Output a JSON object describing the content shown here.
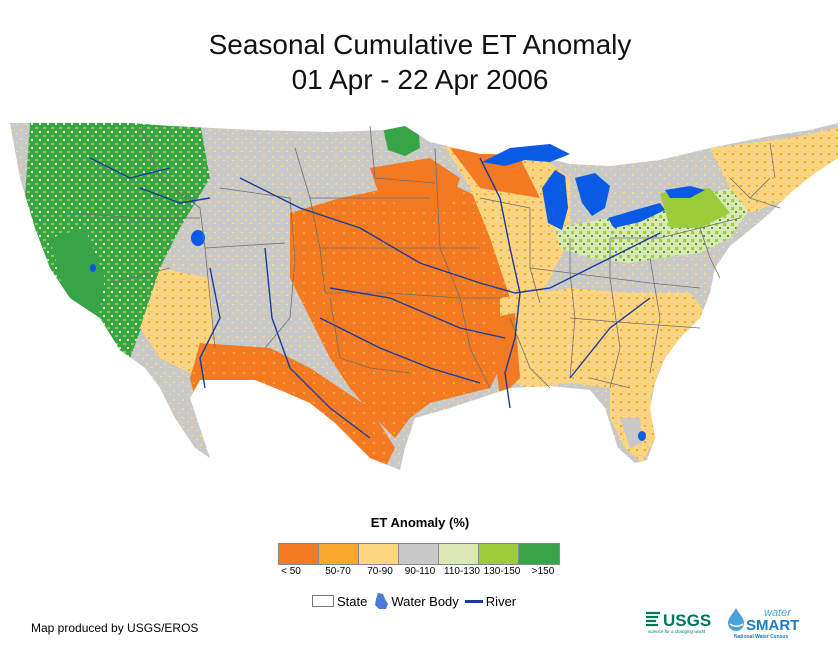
{
  "title": {
    "line1": "Seasonal Cumulative ET Anomaly",
    "line2": "01 Apr - 22 Apr 2006"
  },
  "legend": {
    "title": "ET Anomaly (%)",
    "classes": [
      {
        "label": "< 50",
        "color": "#f37a22"
      },
      {
        "label": "50-70",
        "color": "#f7a929"
      },
      {
        "label": "70-90",
        "color": "#fdd480"
      },
      {
        "label": "90-110",
        "color": "#c8c8c8"
      },
      {
        "label": "110-130",
        "color": "#dbe8b6"
      },
      {
        "label": "130-150",
        "color": "#9ccc3c"
      },
      {
        "label": ">150",
        "color": "#37a547"
      }
    ]
  },
  "key": {
    "state": "State",
    "water_body": "Water Body",
    "river": "River"
  },
  "credit": "Map produced by USGS/EROS",
  "logos": {
    "usgs": "USGS",
    "usgs_tagline": "science for a changing world",
    "watersmart_1": "water",
    "watersmart_2": "SMART",
    "watersmart_tagline": "National Water Census"
  },
  "colors": {
    "lake": "#0a5ae6",
    "river": "#1a3b9c",
    "state_border": "#6f6f6f"
  }
}
